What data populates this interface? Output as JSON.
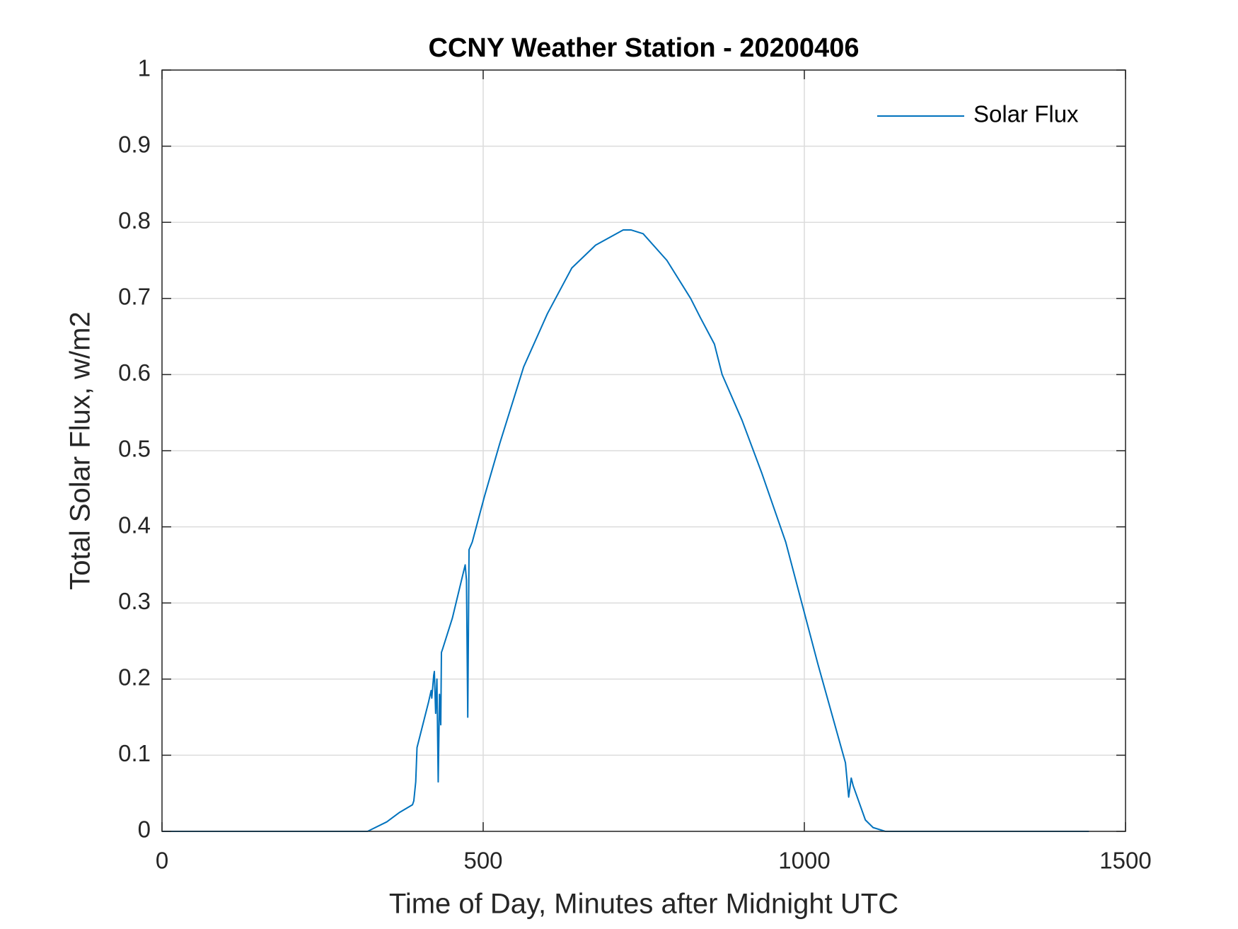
{
  "chart_data": {
    "type": "line",
    "title": "CCNY Weather Station - 20200406",
    "xlabel": "Time of Day, Minutes after Midnight UTC",
    "ylabel": "Total Solar Flux, w/m2",
    "x": [
      0,
      320,
      350,
      370,
      380,
      390,
      392,
      395,
      397,
      403,
      415,
      419,
      420,
      423,
      424,
      426,
      428,
      430,
      432,
      434,
      435,
      437,
      452,
      472,
      474,
      476,
      478,
      483,
      502,
      526,
      563,
      600,
      638,
      675,
      718,
      730,
      749,
      786,
      823,
      838,
      860,
      872,
      903,
      934,
      971,
      1021,
      1064,
      1069,
      1073,
      1076,
      1095,
      1107,
      1126,
      1443
    ],
    "series": [
      {
        "name": "Solar Flux",
        "color": "#0072bd",
        "values": [
          0,
          0,
          0.0125,
          0.025,
          0.03,
          0.035,
          0.04,
          0.065,
          0.11,
          0.13,
          0.17,
          0.185,
          0.175,
          0.205,
          0.21,
          0.155,
          0.2,
          0.065,
          0.18,
          0.14,
          0.235,
          0.24,
          0.28,
          0.35,
          0.33,
          0.15,
          0.37,
          0.38,
          0.44,
          0.51,
          0.61,
          0.68,
          0.74,
          0.77,
          0.79,
          0.79,
          0.785,
          0.75,
          0.7,
          0.675,
          0.64,
          0.6,
          0.54,
          0.47,
          0.38,
          0.22,
          0.09,
          0.045,
          0.07,
          0.06,
          0.015,
          0.005,
          0,
          0
        ]
      }
    ],
    "xlim": [
      0,
      1500
    ],
    "xticks": [
      0,
      500,
      1000,
      1500
    ],
    "ylim": [
      0,
      1
    ],
    "yticks": [
      0,
      0.1,
      0.2,
      0.3,
      0.4,
      0.5,
      0.6,
      0.7,
      0.8,
      0.9,
      1
    ],
    "grid": true,
    "legend": "upper right"
  }
}
